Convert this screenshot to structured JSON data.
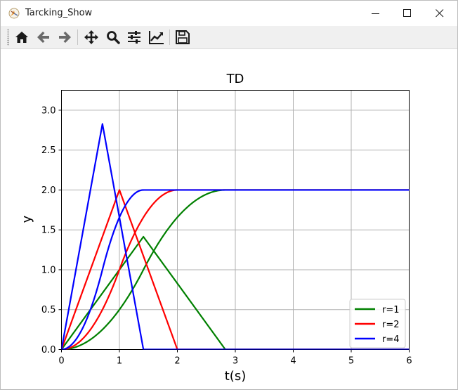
{
  "window": {
    "title": "Tarcking_Show"
  },
  "toolbar": {
    "buttons": [
      {
        "name": "home-button",
        "icon": "home-icon"
      },
      {
        "name": "back-button",
        "icon": "arrow-left-icon"
      },
      {
        "name": "forward-button",
        "icon": "arrow-right-icon"
      },
      {
        "name": "pan-button",
        "icon": "move-icon"
      },
      {
        "name": "zoom-button",
        "icon": "magnifier-icon"
      },
      {
        "name": "configure-subplots-button",
        "icon": "sliders-icon"
      },
      {
        "name": "edit-axis-button",
        "icon": "line-chart-icon"
      },
      {
        "name": "save-button",
        "icon": "floppy-disk-icon"
      }
    ]
  },
  "chart_data": {
    "type": "line",
    "title": "TD",
    "xlabel": "t(s)",
    "ylabel": "y",
    "xlim": [
      0,
      6
    ],
    "ylim": [
      0,
      3.25
    ],
    "xticks": [
      0,
      1,
      2,
      3,
      4,
      5,
      6
    ],
    "yticks": [
      0.0,
      0.5,
      1.0,
      1.5,
      2.0,
      2.5,
      3.0
    ],
    "xtick_labels": [
      "0",
      "1",
      "2",
      "3",
      "4",
      "5",
      "6"
    ],
    "ytick_labels": [
      "0.0",
      "0.5",
      "1.0",
      "1.5",
      "2.0",
      "2.5",
      "3.0"
    ],
    "grid": true,
    "legend_position": "bottom-right",
    "series": [
      {
        "name": "r=1",
        "color": "#008000",
        "target": 2,
        "x": [
          0,
          1.414,
          2.828,
          6
        ],
        "velocity": [
          0,
          1.414,
          0,
          0
        ]
      },
      {
        "name": "r=2",
        "color": "#ff0000",
        "target": 2,
        "x": [
          0,
          1.0,
          2.0,
          6
        ],
        "velocity": [
          0,
          2.0,
          0,
          0
        ]
      },
      {
        "name": "r=4",
        "color": "#0000ff",
        "target": 2,
        "x": [
          0,
          0.707,
          1.414,
          6
        ],
        "velocity": [
          0,
          2.828,
          0,
          0
        ]
      }
    ]
  }
}
